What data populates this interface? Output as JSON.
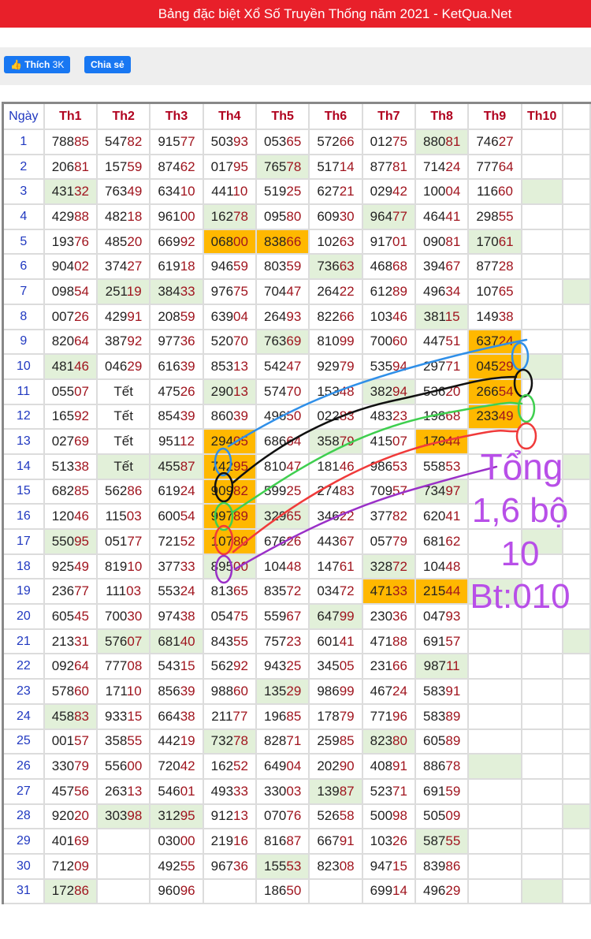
{
  "header": {
    "title": "Bảng đặc biệt Xổ Số Truyền Thống năm 2021 - KetQua.Net",
    "bg": "#e8202a"
  },
  "social": {
    "like_label": "Thích",
    "like_count": "3K",
    "share_label": "Chia sẻ"
  },
  "table": {
    "columns": [
      "Ngày",
      "Th1",
      "Th2",
      "Th3",
      "Th4",
      "Th5",
      "Th6",
      "Th7",
      "Th8",
      "Th9",
      "Th10",
      ""
    ],
    "rows": [
      [
        "1",
        "78885",
        "54782",
        "91577",
        "50393",
        "05365",
        "57266",
        "01275",
        "88081",
        "74627",
        "",
        ""
      ],
      [
        "2",
        "20681",
        "15759",
        "87462",
        "01795",
        "76578",
        "51714",
        "87781",
        "71424",
        "77764",
        "",
        ""
      ],
      [
        "3",
        "43132",
        "76349",
        "63410",
        "44110",
        "51925",
        "62721",
        "02942",
        "10004",
        "11660",
        "",
        ""
      ],
      [
        "4",
        "42988",
        "48218",
        "96100",
        "16278",
        "09580",
        "60930",
        "96477",
        "46441",
        "29855",
        "",
        ""
      ],
      [
        "5",
        "19376",
        "48520",
        "66992",
        "06800",
        "83866",
        "10263",
        "91701",
        "09081",
        "17061",
        "",
        ""
      ],
      [
        "6",
        "90402",
        "37427",
        "61918",
        "94659",
        "80359",
        "73663",
        "46868",
        "39467",
        "87728",
        "",
        ""
      ],
      [
        "7",
        "09854",
        "25119",
        "38433",
        "97675",
        "70447",
        "26422",
        "61289",
        "49634",
        "10765",
        "",
        ""
      ],
      [
        "8",
        "00726",
        "42991",
        "20859",
        "63904",
        "26493",
        "82266",
        "10346",
        "38115",
        "14938",
        "",
        ""
      ],
      [
        "9",
        "82064",
        "38792",
        "97736",
        "52070",
        "76369",
        "81099",
        "70060",
        "44751",
        "63724",
        "",
        ""
      ],
      [
        "10",
        "48146",
        "04629",
        "61639",
        "85313",
        "54247",
        "92979",
        "53594",
        "29771",
        "04529",
        "",
        ""
      ],
      [
        "11",
        "05507",
        "Tết",
        "47526",
        "29013",
        "57470",
        "15348",
        "38294",
        "53620",
        "26654",
        "",
        ""
      ],
      [
        "12",
        "16592",
        "Tết",
        "85439",
        "86039",
        "49650",
        "02283",
        "48323",
        "19868",
        "23349",
        "",
        ""
      ],
      [
        "13",
        "02769",
        "Tết",
        "95112",
        "29405",
        "68664",
        "35879",
        "41507",
        "17044",
        "",
        "",
        ""
      ],
      [
        "14",
        "51338",
        "Tết",
        "45587",
        "74295",
        "81047",
        "18146",
        "98653",
        "55853",
        "",
        "",
        ""
      ],
      [
        "15",
        "68285",
        "56286",
        "61924",
        "90982",
        "59925",
        "27483",
        "70957",
        "73497",
        "",
        "",
        ""
      ],
      [
        "16",
        "12046",
        "11503",
        "60054",
        "99789",
        "32965",
        "34622",
        "37782",
        "62041",
        "",
        "",
        ""
      ],
      [
        "17",
        "55095",
        "05177",
        "72152",
        "10780",
        "67626",
        "44367",
        "05779",
        "68162",
        "",
        "",
        ""
      ],
      [
        "18",
        "92549",
        "81910",
        "37733",
        "89500",
        "10448",
        "14761",
        "32872",
        "10448",
        "",
        "",
        ""
      ],
      [
        "19",
        "23677",
        "11103",
        "55324",
        "81365",
        "83572",
        "03472",
        "47133",
        "21544",
        "",
        "",
        ""
      ],
      [
        "20",
        "60545",
        "70030",
        "97438",
        "05475",
        "55967",
        "64799",
        "23036",
        "04793",
        "",
        "",
        ""
      ],
      [
        "21",
        "21331",
        "57607",
        "68140",
        "84355",
        "75723",
        "60141",
        "47188",
        "69157",
        "",
        "",
        ""
      ],
      [
        "22",
        "09264",
        "77708",
        "54315",
        "56292",
        "94325",
        "34505",
        "23166",
        "98711",
        "",
        "",
        ""
      ],
      [
        "23",
        "57860",
        "17110",
        "85639",
        "98860",
        "13529",
        "98699",
        "46724",
        "58391",
        "",
        "",
        ""
      ],
      [
        "24",
        "45883",
        "93315",
        "66438",
        "21177",
        "19685",
        "17879",
        "77196",
        "58389",
        "",
        "",
        ""
      ],
      [
        "25",
        "00157",
        "35855",
        "44219",
        "73278",
        "82871",
        "25985",
        "82380",
        "60589",
        "",
        "",
        ""
      ],
      [
        "26",
        "33079",
        "55600",
        "72042",
        "16252",
        "64904",
        "20290",
        "40891",
        "88678",
        "",
        "",
        ""
      ],
      [
        "27",
        "45756",
        "26313",
        "54601",
        "49333",
        "33003",
        "13987",
        "52371",
        "69159",
        "",
        "",
        ""
      ],
      [
        "28",
        "92020",
        "30398",
        "31295",
        "91213",
        "07076",
        "52658",
        "50098",
        "50509",
        "",
        "",
        ""
      ],
      [
        "29",
        "40169",
        "",
        "03000",
        "21916",
        "81687",
        "66791",
        "10326",
        "58755",
        "",
        "",
        ""
      ],
      [
        "30",
        "71209",
        "",
        "49255",
        "96736",
        "15553",
        "82308",
        "94715",
        "83986",
        "",
        "",
        ""
      ],
      [
        "31",
        "17286",
        "",
        "96096",
        "",
        "18650",
        "",
        "69914",
        "49629",
        "",
        "",
        ""
      ]
    ],
    "green_cells": [
      "1-8",
      "2-5",
      "3-1",
      "3-10",
      "4-4",
      "4-7",
      "5-9",
      "6-6",
      "7-2",
      "7-3",
      "7-11",
      "8-8",
      "9-5",
      "10-1",
      "10-10",
      "11-4",
      "11-7",
      "13-6",
      "14-2",
      "14-3",
      "14-11",
      "15-8",
      "16-5",
      "17-1",
      "17-10",
      "18-4",
      "18-7",
      "19-9",
      "20-6",
      "21-2",
      "21-3",
      "21-11",
      "22-8",
      "23-5",
      "24-1",
      "25-4",
      "25-7",
      "26-9",
      "27-6",
      "28-2",
      "28-3",
      "28-11",
      "29-8",
      "30-5",
      "31-1",
      "31-10"
    ],
    "orange_cells": [
      "5-4",
      "5-5",
      "9-9",
      "10-9",
      "11-9",
      "12-9",
      "13-4",
      "13-8",
      "14-4",
      "15-4",
      "16-4",
      "17-4",
      "19-7",
      "19-8"
    ],
    "colors": {
      "green": "#e2f0d9",
      "orange": "#ffb800",
      "head": "#b0001e",
      "day": "#2038c0",
      "tail": "#a0141e"
    }
  },
  "annotation": {
    "lines": [
      "Tổng",
      "1,6 bộ",
      "10",
      "Bt:010"
    ],
    "color": "#b84fe8",
    "stroke_colors": [
      "#2f8fe8",
      "#111111",
      "#3fcf4f",
      "#f03a3a",
      "#9a30c8"
    ]
  }
}
